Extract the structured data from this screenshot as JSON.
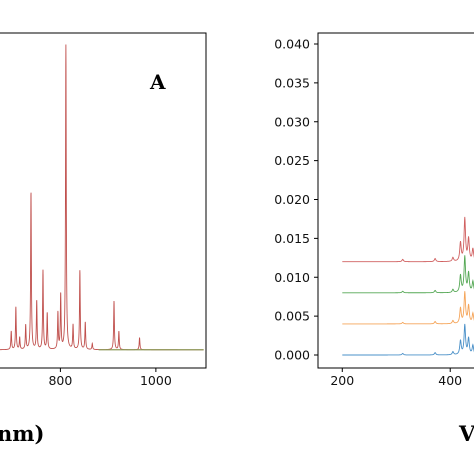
{
  "colors": {
    "series1": "#4a90c8",
    "series2": "#f5a55a",
    "series3": "#55a855",
    "series4": "#d06060",
    "panelA_line": "#c0504d",
    "panelA_tail": "#8e9a5a"
  },
  "chart_data": [
    {
      "type": "line",
      "panel_label": "A",
      "xlabel_visible": "nm)",
      "x_ticks": [
        800,
        1000
      ],
      "xlim": [
        663,
        1105
      ],
      "ylim": [
        0,
        1.05
      ],
      "grid": false,
      "legend": "none",
      "peaks": [
        {
          "x": 697,
          "y": 0.06
        },
        {
          "x": 706.7,
          "y": 0.14
        },
        {
          "x": 714.7,
          "y": 0.04
        },
        {
          "x": 727.3,
          "y": 0.08
        },
        {
          "x": 738.4,
          "y": 0.52
        },
        {
          "x": 750.4,
          "y": 0.16
        },
        {
          "x": 763.5,
          "y": 0.26
        },
        {
          "x": 772.4,
          "y": 0.12
        },
        {
          "x": 794.8,
          "y": 0.12
        },
        {
          "x": 800.6,
          "y": 0.18
        },
        {
          "x": 811.5,
          "y": 1.0
        },
        {
          "x": 826.5,
          "y": 0.08
        },
        {
          "x": 840.8,
          "y": 0.26
        },
        {
          "x": 852.1,
          "y": 0.09
        },
        {
          "x": 866.8,
          "y": 0.02
        },
        {
          "x": 912.3,
          "y": 0.16
        },
        {
          "x": 922.5,
          "y": 0.06
        },
        {
          "x": 965.8,
          "y": 0.04
        }
      ]
    },
    {
      "type": "line",
      "xlabel_visible": "V",
      "x_ticks": [
        200,
        400
      ],
      "y_ticks": [
        "0.000",
        "0.005",
        "0.010",
        "0.015",
        "0.020",
        "0.025",
        "0.030",
        "0.035",
        "0.040"
      ],
      "xlim": [
        155,
        470
      ],
      "ylim": [
        -0.002,
        0.0415
      ],
      "grid": false,
      "legend": "none",
      "series": [
        {
          "offset": 0.0,
          "peaks": [
            {
              "x": 312,
              "y": 0.0002
            },
            {
              "x": 372,
              "y": 0.0003
            },
            {
              "x": 405,
              "y": 0.0004
            },
            {
              "x": 419,
              "y": 0.0018
            },
            {
              "x": 427,
              "y": 0.0038
            },
            {
              "x": 434,
              "y": 0.0021
            },
            {
              "x": 442,
              "y": 0.0012
            }
          ]
        },
        {
          "offset": 0.004,
          "peaks": [
            {
              "x": 312,
              "y": 0.0002
            },
            {
              "x": 372,
              "y": 0.0003
            },
            {
              "x": 405,
              "y": 0.0004
            },
            {
              "x": 419,
              "y": 0.002
            },
            {
              "x": 427,
              "y": 0.004
            },
            {
              "x": 434,
              "y": 0.0023
            },
            {
              "x": 442,
              "y": 0.0013
            }
          ]
        },
        {
          "offset": 0.008,
          "peaks": [
            {
              "x": 312,
              "y": 0.0002
            },
            {
              "x": 372,
              "y": 0.0003
            },
            {
              "x": 405,
              "y": 0.0004
            },
            {
              "x": 419,
              "y": 0.0022
            },
            {
              "x": 427,
              "y": 0.0046
            },
            {
              "x": 434,
              "y": 0.0025
            },
            {
              "x": 442,
              "y": 0.0014
            }
          ]
        },
        {
          "offset": 0.012,
          "peaks": [
            {
              "x": 312,
              "y": 0.0003
            },
            {
              "x": 372,
              "y": 0.0004
            },
            {
              "x": 405,
              "y": 0.0005
            },
            {
              "x": 419,
              "y": 0.0024
            },
            {
              "x": 427,
              "y": 0.0055
            },
            {
              "x": 434,
              "y": 0.0029
            },
            {
              "x": 442,
              "y": 0.0016
            }
          ]
        }
      ]
    }
  ]
}
